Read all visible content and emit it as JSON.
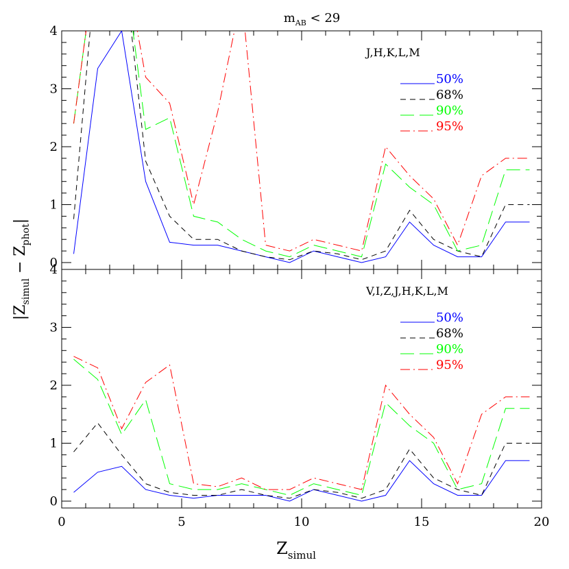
{
  "title_main": "m",
  "title_sub": "AB",
  "title_rest": " < 29",
  "ylabel": {
    "open": "|Z",
    "sub1": "simul",
    "mid": " − Z",
    "sub2": "phot",
    "close": "|"
  },
  "xlabel": {
    "main": "Z",
    "sub": "simul"
  },
  "colors": {
    "50%": "#0000ff",
    "68%": "#000000",
    "90%": "#00ff00",
    "95%": "#ff0000"
  },
  "chart_data": [
    {
      "type": "line",
      "panel": "top",
      "annotation": "J,H,K,L,M",
      "xlim": [
        0,
        20
      ],
      "ylim": [
        0,
        4
      ],
      "x": [
        0.5,
        1.5,
        2.5,
        3.5,
        4.5,
        5.5,
        6.5,
        7.5,
        8.5,
        9.5,
        10.5,
        11.5,
        12.5,
        13.5,
        14.5,
        15.5,
        16.5,
        17.5,
        18.5,
        19.5
      ],
      "series": [
        {
          "name": "50%",
          "dash": "solid",
          "values": [
            0.15,
            3.35,
            4.0,
            1.4,
            0.35,
            0.3,
            0.3,
            0.2,
            0.1,
            0.0,
            0.2,
            0.1,
            0.0,
            0.1,
            0.7,
            0.3,
            0.1,
            0.1,
            0.7,
            0.7
          ]
        },
        {
          "name": "68%",
          "dash": "dashed",
          "values": [
            0.75,
            5.5,
            5.5,
            1.75,
            0.8,
            0.4,
            0.4,
            0.2,
            0.1,
            0.05,
            0.2,
            0.15,
            0.05,
            0.2,
            0.9,
            0.4,
            0.2,
            0.1,
            1.0,
            1.0
          ]
        },
        {
          "name": "90%",
          "dash": "long-dash",
          "values": [
            2.4,
            5.5,
            5.5,
            2.3,
            2.5,
            0.8,
            0.7,
            0.4,
            0.2,
            0.1,
            0.3,
            0.2,
            0.1,
            1.7,
            1.3,
            1.0,
            0.2,
            0.3,
            1.6,
            1.6
          ]
        },
        {
          "name": "95%",
          "dash": "dash-dot",
          "values": [
            2.4,
            5.5,
            5.5,
            3.2,
            2.75,
            1.0,
            2.6,
            4.6,
            0.3,
            0.2,
            0.4,
            0.3,
            0.2,
            2.0,
            1.5,
            1.1,
            0.3,
            1.5,
            1.8,
            1.8
          ]
        }
      ]
    },
    {
      "type": "line",
      "panel": "bottom",
      "annotation": "V,I,Z,J,H,K,L,M",
      "xlim": [
        0,
        20
      ],
      "ylim": [
        0,
        4
      ],
      "x": [
        0.5,
        1.5,
        2.5,
        3.5,
        4.5,
        5.5,
        6.5,
        7.5,
        8.5,
        9.5,
        10.5,
        11.5,
        12.5,
        13.5,
        14.5,
        15.5,
        16.5,
        17.5,
        18.5,
        19.5
      ],
      "series": [
        {
          "name": "50%",
          "dash": "solid",
          "values": [
            0.15,
            0.5,
            0.6,
            0.2,
            0.1,
            0.05,
            0.1,
            0.1,
            0.1,
            0.0,
            0.2,
            0.1,
            0.0,
            0.1,
            0.7,
            0.3,
            0.1,
            0.1,
            0.7,
            0.7
          ]
        },
        {
          "name": "68%",
          "dash": "dashed",
          "values": [
            0.85,
            1.35,
            0.8,
            0.3,
            0.15,
            0.1,
            0.1,
            0.2,
            0.1,
            0.05,
            0.2,
            0.15,
            0.05,
            0.2,
            0.9,
            0.4,
            0.2,
            0.1,
            1.0,
            1.0
          ]
        },
        {
          "name": "90%",
          "dash": "long-dash",
          "values": [
            2.45,
            2.1,
            1.15,
            1.75,
            0.3,
            0.2,
            0.2,
            0.3,
            0.2,
            0.1,
            0.3,
            0.2,
            0.1,
            1.7,
            1.3,
            1.0,
            0.2,
            0.3,
            1.6,
            1.6
          ]
        },
        {
          "name": "95%",
          "dash": "dash-dot",
          "values": [
            2.5,
            2.3,
            1.25,
            2.05,
            2.35,
            0.3,
            0.25,
            0.4,
            0.2,
            0.2,
            0.4,
            0.3,
            0.2,
            2.0,
            1.5,
            1.1,
            0.3,
            1.5,
            1.8,
            1.8
          ]
        }
      ]
    }
  ],
  "axis": {
    "x_ticks": [
      "0",
      "5",
      "10",
      "15",
      "20"
    ],
    "y_ticks_top": [
      "0",
      "1",
      "2",
      "3",
      "4"
    ],
    "y_ticks_bottom": [
      "0",
      "1",
      "2",
      "3",
      "4"
    ]
  }
}
